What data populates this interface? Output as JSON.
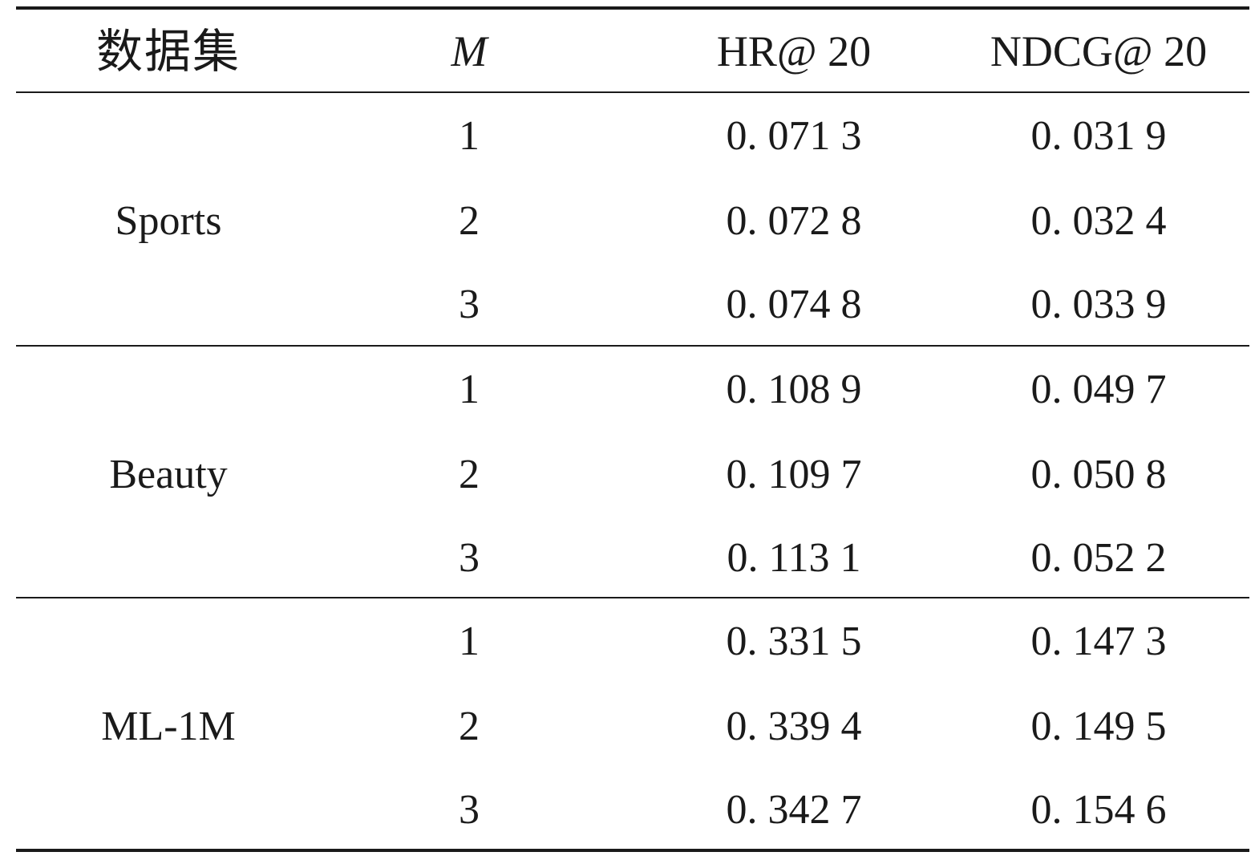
{
  "table": {
    "headers": {
      "dataset": "数据集",
      "m": "M",
      "hr": "HR@ 20",
      "ndcg": "NDCG@ 20"
    },
    "groups": [
      {
        "dataset": "Sports",
        "rows": [
          {
            "m": "1",
            "hr": "0. 071 3",
            "ndcg": "0. 031 9"
          },
          {
            "m": "2",
            "hr": "0. 072 8",
            "ndcg": "0. 032 4"
          },
          {
            "m": "3",
            "hr": "0. 074 8",
            "ndcg": "0. 033 9"
          }
        ]
      },
      {
        "dataset": "Beauty",
        "rows": [
          {
            "m": "1",
            "hr": "0. 108 9",
            "ndcg": "0. 049 7"
          },
          {
            "m": "2",
            "hr": "0. 109 7",
            "ndcg": "0. 050 8"
          },
          {
            "m": "3",
            "hr": "0. 113 1",
            "ndcg": "0. 052 2"
          }
        ]
      },
      {
        "dataset": "ML-1M",
        "rows": [
          {
            "m": "1",
            "hr": "0. 331 5",
            "ndcg": "0. 147 3"
          },
          {
            "m": "2",
            "hr": "0. 339 4",
            "ndcg": "0. 149 5"
          },
          {
            "m": "3",
            "hr": "0. 342 7",
            "ndcg": "0. 154 6"
          }
        ]
      }
    ]
  }
}
